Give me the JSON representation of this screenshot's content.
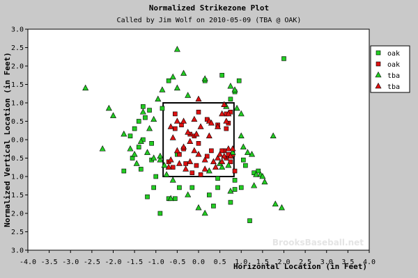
{
  "chart_data": {
    "type": "scatter",
    "title": "Normalized Strikezone Plot",
    "subtitle": "Called by Jim Wolf on 2010-05-09 (TBA @ OAK)",
    "xlabel": "Horizontal Location (in Feet)",
    "ylabel": "Normalized Vertical Location (in Feet)",
    "xlim": [
      -4.0,
      4.0
    ],
    "ylim": [
      -3.0,
      3.0
    ],
    "x_ticks": [
      "-4.0",
      "-3.5",
      "-3.0",
      "-2.5",
      "-2.0",
      "-1.5",
      "-1.0",
      "-0.5",
      "0.0",
      "0.5",
      "1.0",
      "1.5",
      "2.0",
      "2.5",
      "3.0",
      "3.5",
      "4.0"
    ],
    "y_ticks": [
      "3.0",
      "2.5",
      "2.0",
      "1.5",
      "1.0",
      "0.5",
      "0.0",
      "0.5",
      "1.0",
      "1.5",
      "2.0",
      "2.5",
      "3.0"
    ],
    "y_tick_values": [
      3.0,
      2.5,
      2.0,
      1.5,
      1.0,
      0.5,
      0.0,
      -0.5,
      -1.0,
      -1.5,
      -2.0,
      -2.5,
      -3.0
    ],
    "grid": false,
    "legend_position": "top-right",
    "strike_zone": {
      "x": [
        -0.83,
        0.83
      ],
      "y": [
        -1.0,
        1.0
      ]
    },
    "watermark": "BrooksBaseball.net",
    "colors": {
      "ball": "#22cc22",
      "strike": "#dd1111",
      "background": "#c9c9c9",
      "plot": "#ffffff"
    },
    "series": [
      {
        "name": "oak",
        "marker": "square",
        "color": "#22cc22",
        "points": [
          [
            -1.3,
            0.9
          ],
          [
            -1.15,
            0.8
          ],
          [
            -1.25,
            0.6
          ],
          [
            -1.4,
            0.5
          ],
          [
            -1.5,
            0.3
          ],
          [
            -1.6,
            0.1
          ],
          [
            -1.3,
            0.0
          ],
          [
            -1.1,
            -0.1
          ],
          [
            -1.4,
            -0.2
          ],
          [
            -1.55,
            -0.5
          ],
          [
            -1.75,
            -0.85
          ],
          [
            -1.35,
            -0.8
          ],
          [
            -1.1,
            -0.55
          ],
          [
            -1.0,
            -1.0
          ],
          [
            -1.05,
            -1.3
          ],
          [
            -1.2,
            -1.55
          ],
          [
            -0.7,
            -1.6
          ],
          [
            -0.9,
            -2.0
          ],
          [
            -0.45,
            -1.3
          ],
          [
            -0.15,
            -1.3
          ],
          [
            0.25,
            -1.5
          ],
          [
            0.35,
            -1.8
          ],
          [
            0.75,
            -1.7
          ],
          [
            0.85,
            -1.35
          ],
          [
            1.1,
            -0.7
          ],
          [
            1.4,
            -0.85
          ],
          [
            1.3,
            -0.9
          ],
          [
            1.05,
            -0.55
          ],
          [
            0.85,
            1.3
          ],
          [
            0.95,
            1.6
          ],
          [
            0.55,
            1.75
          ],
          [
            0.15,
            1.6
          ],
          [
            0.75,
            1.1
          ],
          [
            -0.85,
            0.85
          ],
          [
            -0.7,
            1.6
          ],
          [
            0.85,
            -1.1
          ],
          [
            -0.55,
            -1.6
          ],
          [
            0.45,
            -1.3
          ],
          [
            1.2,
            -2.2
          ],
          [
            2.0,
            2.2
          ],
          [
            -0.5,
            -0.4
          ],
          [
            1.0,
            -1.3
          ],
          [
            0.45,
            -1.05
          ]
        ]
      },
      {
        "name": "oak",
        "marker": "square",
        "color": "#dd1111",
        "points": [
          [
            -0.55,
            0.3
          ],
          [
            -0.4,
            0.4
          ],
          [
            -0.2,
            0.15
          ],
          [
            0.0,
            0.75
          ],
          [
            0.2,
            0.55
          ],
          [
            0.45,
            0.4
          ],
          [
            0.65,
            0.7
          ],
          [
            0.65,
            0.3
          ],
          [
            0.75,
            0.75
          ],
          [
            0.7,
            0.45
          ],
          [
            0.6,
            -0.3
          ],
          [
            0.7,
            -0.4
          ],
          [
            0.8,
            -0.4
          ],
          [
            0.75,
            -0.6
          ],
          [
            0.65,
            -0.5
          ],
          [
            0.85,
            -0.85
          ],
          [
            0.55,
            -0.3
          ],
          [
            0.0,
            -0.1
          ],
          [
            -0.1,
            0.1
          ],
          [
            -0.35,
            -0.25
          ],
          [
            -0.45,
            -0.4
          ],
          [
            -0.7,
            -0.6
          ],
          [
            -0.6,
            -0.75
          ],
          [
            -0.3,
            -0.65
          ],
          [
            -0.05,
            -0.7
          ],
          [
            0.2,
            -0.45
          ],
          [
            0.3,
            -0.3
          ],
          [
            -0.55,
            0.7
          ],
          [
            0.7,
            -0.4
          ],
          [
            -0.15,
            -0.9
          ],
          [
            0.05,
            -0.95
          ]
        ]
      },
      {
        "name": "tba",
        "marker": "triangle",
        "color": "#22cc22",
        "points": [
          [
            -2.65,
            1.4
          ],
          [
            -2.1,
            0.85
          ],
          [
            -2.0,
            0.65
          ],
          [
            -1.75,
            0.15
          ],
          [
            -1.6,
            -0.25
          ],
          [
            -1.5,
            -0.4
          ],
          [
            -1.35,
            -0.05
          ],
          [
            -1.3,
            0.75
          ],
          [
            -1.05,
            0.55
          ],
          [
            -1.15,
            0.3
          ],
          [
            -1.2,
            -0.35
          ],
          [
            -1.05,
            -0.5
          ],
          [
            -0.9,
            -0.55
          ],
          [
            -0.8,
            -0.7
          ],
          [
            -0.75,
            -0.95
          ],
          [
            -0.6,
            -1.1
          ],
          [
            -0.65,
            -1.6
          ],
          [
            -0.95,
            1.1
          ],
          [
            -0.85,
            1.35
          ],
          [
            -0.6,
            1.7
          ],
          [
            -0.5,
            1.4
          ],
          [
            -0.35,
            1.8
          ],
          [
            -0.25,
            1.2
          ],
          [
            -0.5,
            2.45
          ],
          [
            0.15,
            1.65
          ],
          [
            0.65,
            0.9
          ],
          [
            0.75,
            1.45
          ],
          [
            0.85,
            1.35
          ],
          [
            0.9,
            0.85
          ],
          [
            1.0,
            0.7
          ],
          [
            1.0,
            0.1
          ],
          [
            1.05,
            -0.2
          ],
          [
            1.15,
            -0.35
          ],
          [
            1.25,
            -0.4
          ],
          [
            1.35,
            -0.95
          ],
          [
            1.45,
            -0.95
          ],
          [
            1.5,
            -1.0
          ],
          [
            1.55,
            -1.15
          ],
          [
            1.8,
            -1.75
          ],
          [
            1.95,
            -1.85
          ],
          [
            1.75,
            0.1
          ],
          [
            0.55,
            -0.75
          ],
          [
            0.25,
            -0.85
          ],
          [
            0.0,
            -1.85
          ],
          [
            0.15,
            -2.0
          ],
          [
            -0.25,
            -1.5
          ],
          [
            0.5,
            -0.65
          ],
          [
            0.7,
            -0.7
          ],
          [
            0.75,
            -1.4
          ],
          [
            0.8,
            -0.35
          ],
          [
            1.3,
            -1.25
          ],
          [
            -0.9,
            -0.45
          ],
          [
            -1.45,
            -0.65
          ],
          [
            -2.25,
            -0.25
          ]
        ]
      },
      {
        "name": "tba",
        "marker": "triangle",
        "color": "#dd1111",
        "points": [
          [
            -0.65,
            0.35
          ],
          [
            -0.35,
            0.5
          ],
          [
            -0.25,
            0.2
          ],
          [
            0.05,
            0.35
          ],
          [
            0.25,
            0.5
          ],
          [
            0.45,
            0.35
          ],
          [
            0.55,
            0.7
          ],
          [
            0.7,
            0.7
          ],
          [
            0.65,
            0.5
          ],
          [
            0.7,
            -0.25
          ],
          [
            0.6,
            -0.45
          ],
          [
            0.75,
            -0.45
          ],
          [
            0.8,
            -0.25
          ],
          [
            0.55,
            -0.6
          ],
          [
            0.4,
            -0.75
          ],
          [
            0.15,
            -0.55
          ],
          [
            0.0,
            -0.4
          ],
          [
            -0.1,
            -0.3
          ],
          [
            -0.2,
            -0.05
          ],
          [
            -0.35,
            -0.2
          ],
          [
            -0.5,
            -0.3
          ],
          [
            -0.65,
            -0.55
          ],
          [
            -0.7,
            -0.75
          ],
          [
            -0.45,
            -0.65
          ],
          [
            -0.3,
            -0.8
          ],
          [
            -0.2,
            -0.6
          ],
          [
            0.35,
            -0.6
          ],
          [
            0.3,
            0.45
          ],
          [
            0.0,
            1.1
          ],
          [
            -0.5,
            0.5
          ],
          [
            -0.1,
            0.55
          ],
          [
            0.6,
            0.95
          ],
          [
            0.45,
            -0.5
          ],
          [
            -0.6,
            0.05
          ],
          [
            0.25,
            0.1
          ],
          [
            -0.05,
            0.15
          ],
          [
            0.15,
            -0.8
          ],
          [
            0.5,
            -0.4
          ]
        ]
      }
    ]
  }
}
